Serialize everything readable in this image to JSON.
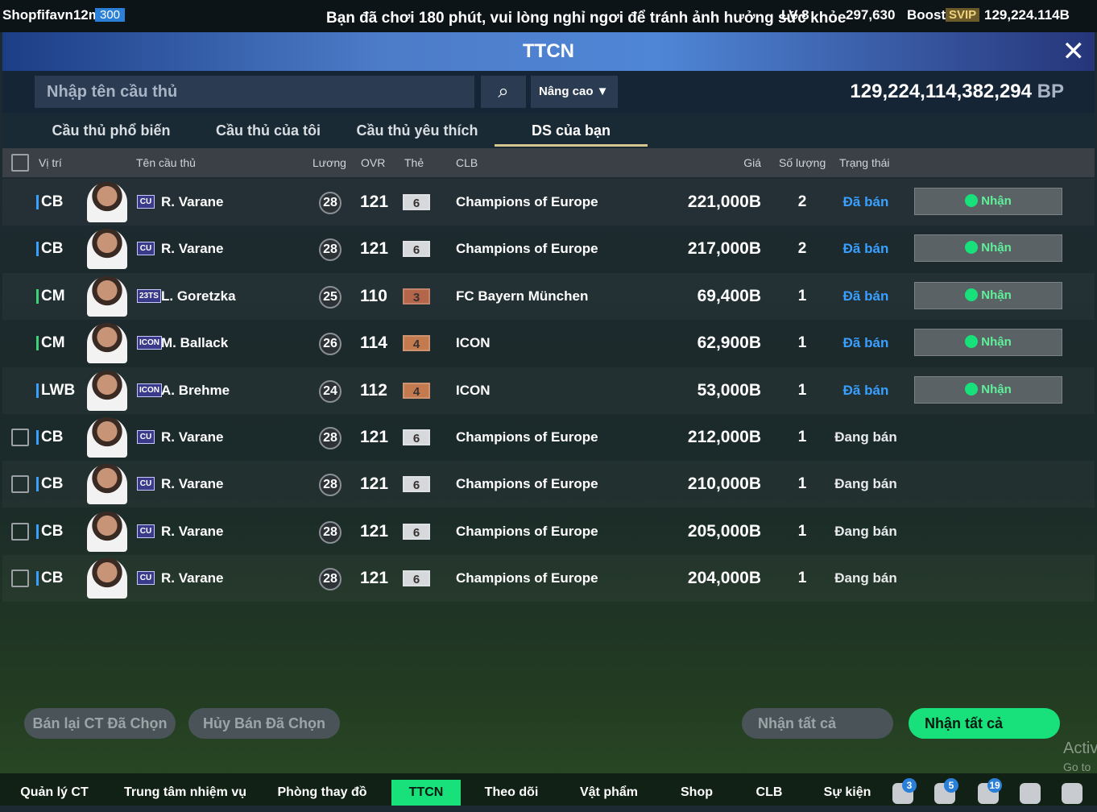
{
  "top_bar": {
    "user": "Shopfifavn12m",
    "user_badge": "300",
    "notice": "Bạn đã chơi 180 phút, vui lòng nghỉ ngơi để tránh ảnh hưởng sức khỏe",
    "level": "LV 8",
    "coins": "297,630",
    "boost": "Boost",
    "svip": "SVIP",
    "bp": "129,224.114B"
  },
  "header": {
    "title": "TTCN"
  },
  "search": {
    "placeholder": "Nhập tên cầu thủ",
    "advanced": "Nâng cao",
    "balance": "129,224,114,382,294",
    "unit": "BP"
  },
  "tabs": [
    "Cầu thủ phổ biến",
    "Cầu thủ của tôi",
    "Cầu thủ yêu thích",
    "DS của bạn"
  ],
  "active_tab": 3,
  "columns": [
    "Vị trí",
    "Tên cầu thủ",
    "Lương",
    "OVR",
    "Thẻ",
    "CLB",
    "Giá",
    "Số lượng",
    "Trạng thái"
  ],
  "rows": [
    {
      "position": "CB",
      "pos_color": "#3aa0ff",
      "season": "CU",
      "name": "R. Varane",
      "salary": "28",
      "ovr": "121",
      "grade": "6",
      "grade_color": "#d6d9dc",
      "club": "Champions of Europe",
      "price": "221,000B",
      "qty": "2",
      "status": "Đã bán",
      "action": "Nhận"
    },
    {
      "position": "CB",
      "pos_color": "#3aa0ff",
      "season": "CU",
      "name": "R. Varane",
      "salary": "28",
      "ovr": "121",
      "grade": "6",
      "grade_color": "#d6d9dc",
      "club": "Champions of Europe",
      "price": "217,000B",
      "qty": "2",
      "status": "Đã bán",
      "action": "Nhận"
    },
    {
      "position": "CM",
      "pos_color": "#3fd07a",
      "season": "23TS",
      "name": "L. Goretzka",
      "salary": "25",
      "ovr": "110",
      "grade": "3",
      "grade_color": "#b4664a",
      "club": "FC Bayern München",
      "price": "69,400B",
      "qty": "1",
      "status": "Đã bán",
      "action": "Nhận"
    },
    {
      "position": "CM",
      "pos_color": "#3fd07a",
      "season": "ICON",
      "name": "M. Ballack",
      "salary": "26",
      "ovr": "114",
      "grade": "4",
      "grade_color": "#c27a4e",
      "club": "ICON",
      "price": "62,900B",
      "qty": "1",
      "status": "Đã bán",
      "action": "Nhận"
    },
    {
      "position": "LWB",
      "pos_color": "#3aa0ff",
      "season": "ICON",
      "name": "A. Brehme",
      "salary": "24",
      "ovr": "112",
      "grade": "4",
      "grade_color": "#c27a4e",
      "club": "ICON",
      "price": "53,000B",
      "qty": "1",
      "status": "Đã bán",
      "action": "Nhận"
    },
    {
      "position": "CB",
      "pos_color": "#3aa0ff",
      "season": "CU",
      "name": "R. Varane",
      "salary": "28",
      "ovr": "121",
      "grade": "6",
      "grade_color": "#d6d9dc",
      "club": "Champions of Europe",
      "price": "212,000B",
      "qty": "1",
      "status": "Đang bán"
    },
    {
      "position": "CB",
      "pos_color": "#3aa0ff",
      "season": "CU",
      "name": "R. Varane",
      "salary": "28",
      "ovr": "121",
      "grade": "6",
      "grade_color": "#d6d9dc",
      "club": "Champions of Europe",
      "price": "210,000B",
      "qty": "1",
      "status": "Đang bán"
    },
    {
      "position": "CB",
      "pos_color": "#3aa0ff",
      "season": "CU",
      "name": "R. Varane",
      "salary": "28",
      "ovr": "121",
      "grade": "6",
      "grade_color": "#d6d9dc",
      "club": "Champions of Europe",
      "price": "205,000B",
      "qty": "1",
      "status": "Đang bán"
    },
    {
      "position": "CB",
      "pos_color": "#3aa0ff",
      "season": "CU",
      "name": "R. Varane",
      "salary": "28",
      "ovr": "121",
      "grade": "6",
      "grade_color": "#d6d9dc",
      "club": "Champions of Europe",
      "price": "204,000B",
      "qty": "1",
      "status": "Đang bán"
    }
  ],
  "buttons": {
    "resell": "Bán lại CT Đã Chọn",
    "cancel": "Hủy Bán Đã Chọn",
    "claim_all_disabled": "Nhận tất cả",
    "claim_all": "Nhận tất cả"
  },
  "watermark": {
    "line1": "Activ",
    "line2": "Go to"
  },
  "nav": [
    "Quản lý CT",
    "Trung tâm nhiệm vụ",
    "Phòng thay đồ",
    "TTCN",
    "Theo dõi",
    "Vật phẩm",
    "Shop",
    "CLB",
    "Sự kiện"
  ],
  "nav_active": 3,
  "nav_badges": [
    "3",
    "5",
    "19"
  ]
}
